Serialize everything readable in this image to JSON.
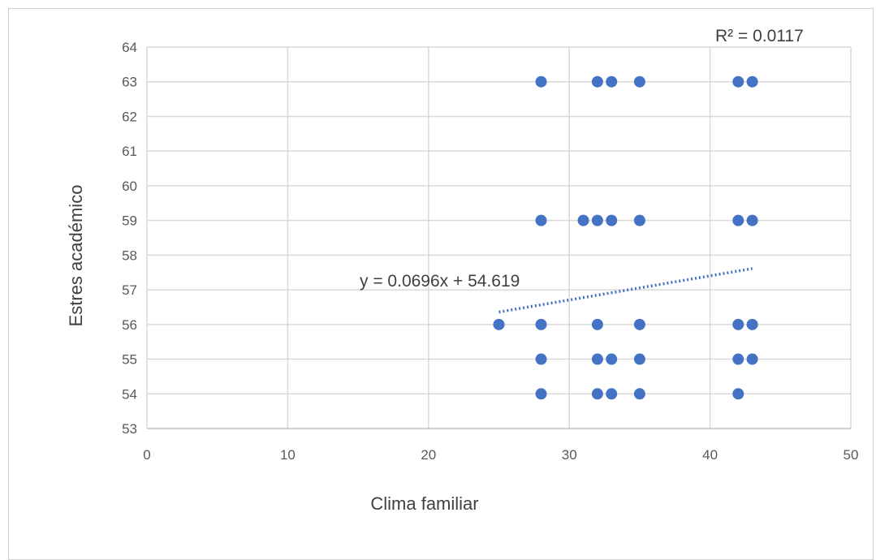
{
  "chart_data": {
    "type": "scatter",
    "xlabel": "Clima familiar",
    "ylabel": "Estres académico",
    "xlim": [
      0,
      50
    ],
    "ylim": [
      53,
      64
    ],
    "x_ticks": [
      0,
      10,
      20,
      30,
      40,
      50
    ],
    "y_ticks": [
      53,
      54,
      55,
      56,
      57,
      58,
      59,
      60,
      61,
      62,
      63,
      64
    ],
    "grid": true,
    "marker_color": "#4472C4",
    "series": [
      {
        "points": [
          [
            28,
            63
          ],
          [
            32,
            63
          ],
          [
            33,
            63
          ],
          [
            35,
            63
          ],
          [
            42,
            63
          ],
          [
            43,
            63
          ],
          [
            28,
            59
          ],
          [
            31,
            59
          ],
          [
            32,
            59
          ],
          [
            33,
            59
          ],
          [
            35,
            59
          ],
          [
            42,
            59
          ],
          [
            43,
            59
          ],
          [
            25,
            56
          ],
          [
            28,
            56
          ],
          [
            32,
            56
          ],
          [
            35,
            56
          ],
          [
            42,
            56
          ],
          [
            43,
            56
          ],
          [
            28,
            55
          ],
          [
            32,
            55
          ],
          [
            33,
            55
          ],
          [
            35,
            55
          ],
          [
            42,
            55
          ],
          [
            43,
            55
          ],
          [
            28,
            54
          ],
          [
            32,
            54
          ],
          [
            33,
            54
          ],
          [
            35,
            54
          ],
          [
            42,
            54
          ]
        ]
      }
    ],
    "trendline": {
      "type": "linear",
      "slope": 0.0696,
      "intercept": 54.619,
      "x_range": [
        25,
        43
      ],
      "style": "dotted",
      "color": "#4472C4",
      "equation_label": "y = 0.0696x + 54.619",
      "r2_label": "R² = 0.0117"
    }
  }
}
